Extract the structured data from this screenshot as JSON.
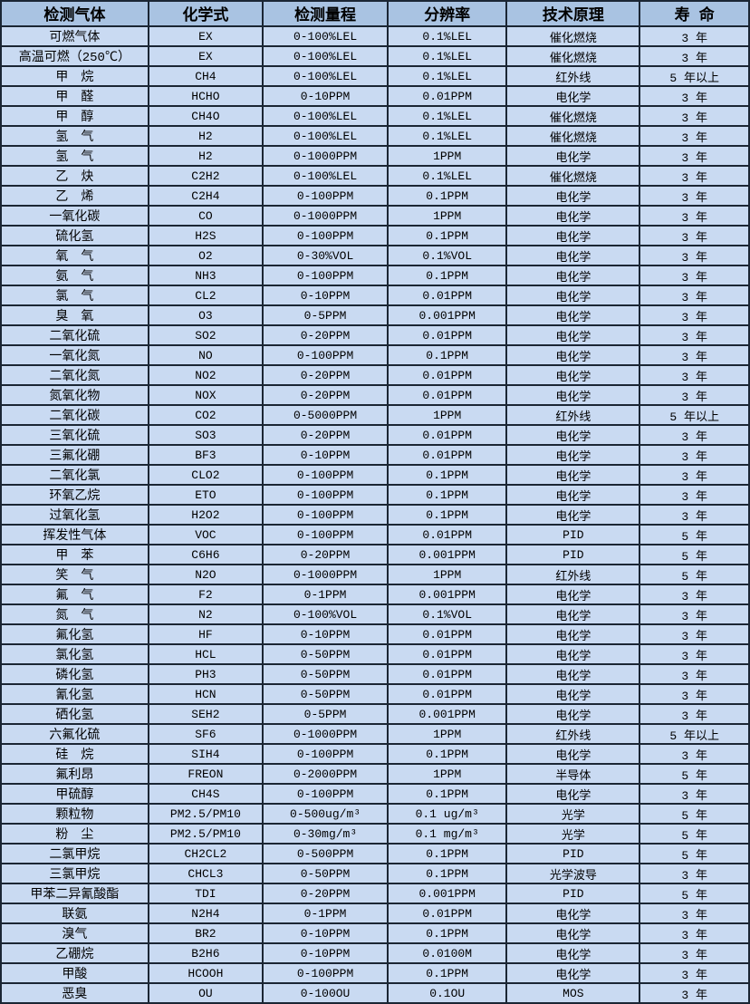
{
  "colors": {
    "header_bg": "#a9c3e2",
    "row_bg": "#c9daf2",
    "border": "#1b2634",
    "text": "#000000"
  },
  "table": {
    "headers": [
      "检测气体",
      "化学式",
      "检测量程",
      "分辨率",
      "技术原理",
      "寿  命"
    ],
    "column_keys": [
      "gas",
      "formula",
      "range",
      "resolution",
      "principle",
      "lifespan"
    ],
    "rows": [
      [
        "可燃气体",
        "EX",
        "0-100%LEL",
        "0.1%LEL",
        "催化燃烧",
        "3 年"
      ],
      [
        "高温可燃（250℃）",
        "EX",
        "0-100%LEL",
        "0.1%LEL",
        "催化燃烧",
        "3 年"
      ],
      [
        "甲　烷",
        "CH4",
        "0-100%LEL",
        "0.1%LEL",
        "红外线",
        "5 年以上"
      ],
      [
        "甲　醛",
        "HCHO",
        "0-10PPM",
        "0.01PPM",
        "电化学",
        "3 年"
      ],
      [
        "甲　醇",
        "CH4O",
        "0-100%LEL",
        "0.1%LEL",
        "催化燃烧",
        "3 年"
      ],
      [
        "氢　气",
        "H2",
        "0-100%LEL",
        "0.1%LEL",
        "催化燃烧",
        "3 年"
      ],
      [
        "氢　气",
        "H2",
        "0-1000PPM",
        "1PPM",
        "电化学",
        "3 年"
      ],
      [
        "乙　炔",
        "C2H2",
        "0-100%LEL",
        "0.1%LEL",
        "催化燃烧",
        "3 年"
      ],
      [
        "乙　烯",
        "C2H4",
        "0-100PPM",
        "0.1PPM",
        "电化学",
        "3 年"
      ],
      [
        "一氧化碳",
        "CO",
        "0-1000PPM",
        "1PPM",
        "电化学",
        "3 年"
      ],
      [
        "硫化氢",
        "H2S",
        "0-100PPM",
        "0.1PPM",
        "电化学",
        "3 年"
      ],
      [
        "氧　气",
        "O2",
        "0-30%VOL",
        "0.1%VOL",
        "电化学",
        "3 年"
      ],
      [
        "氨　气",
        "NH3",
        "0-100PPM",
        "0.1PPM",
        "电化学",
        "3 年"
      ],
      [
        "氯　气",
        "CL2",
        "0-10PPM",
        "0.01PPM",
        "电化学",
        "3 年"
      ],
      [
        "臭　氧",
        "O3",
        "0-5PPM",
        "0.001PPM",
        "电化学",
        "3 年"
      ],
      [
        "二氧化硫",
        "SO2",
        "0-20PPM",
        "0.01PPM",
        "电化学",
        "3 年"
      ],
      [
        "一氧化氮",
        "NO",
        "0-100PPM",
        "0.1PPM",
        "电化学",
        "3 年"
      ],
      [
        "二氧化氮",
        "NO2",
        "0-20PPM",
        "0.01PPM",
        "电化学",
        "3 年"
      ],
      [
        "氮氧化物",
        "NOX",
        "0-20PPM",
        "0.01PPM",
        "电化学",
        "3 年"
      ],
      [
        "二氧化碳",
        "CO2",
        "0-5000PPM",
        "1PPM",
        "红外线",
        "5 年以上"
      ],
      [
        "三氧化硫",
        "SO3",
        "0-20PPM",
        "0.01PPM",
        "电化学",
        "3 年"
      ],
      [
        "三氟化硼",
        "BF3",
        "0-10PPM",
        "0.01PPM",
        "电化学",
        "3 年"
      ],
      [
        "二氧化氯",
        "CLO2",
        "0-100PPM",
        "0.1PPM",
        "电化学",
        "3 年"
      ],
      [
        "环氧乙烷",
        "ETO",
        "0-100PPM",
        "0.1PPM",
        "电化学",
        "3 年"
      ],
      [
        "过氧化氢",
        "H2O2",
        "0-100PPM",
        "0.1PPM",
        "电化学",
        "3 年"
      ],
      [
        "挥发性气体",
        "VOC",
        "0-100PPM",
        "0.01PPM",
        "PID",
        "5 年"
      ],
      [
        "甲　苯",
        "C6H6",
        "0-20PPM",
        "0.001PPM",
        "PID",
        "5 年"
      ],
      [
        "笑　气",
        "N2O",
        "0-1000PPM",
        "1PPM",
        "红外线",
        "5 年"
      ],
      [
        "氟　气",
        "F2",
        "0-1PPM",
        "0.001PPM",
        "电化学",
        "3 年"
      ],
      [
        "氮　气",
        "N2",
        "0-100%VOL",
        "0.1%VOL",
        "电化学",
        "3 年"
      ],
      [
        "氟化氢",
        "HF",
        "0-10PPM",
        "0.01PPM",
        "电化学",
        "3 年"
      ],
      [
        "氯化氢",
        "HCL",
        "0-50PPM",
        "0.01PPM",
        "电化学",
        "3 年"
      ],
      [
        "磷化氢",
        "PH3",
        "0-50PPM",
        "0.01PPM",
        "电化学",
        "3 年"
      ],
      [
        "氰化氢",
        "HCN",
        "0-50PPM",
        "0.01PPM",
        "电化学",
        "3 年"
      ],
      [
        "硒化氢",
        "SEH2",
        "0-5PPM",
        "0.001PPM",
        "电化学",
        "3 年"
      ],
      [
        "六氟化硫",
        "SF6",
        "0-1000PPM",
        "1PPM",
        "红外线",
        "5 年以上"
      ],
      [
        "硅　烷",
        "SIH4",
        "0-100PPM",
        "0.1PPM",
        "电化学",
        "3 年"
      ],
      [
        "氟利昂",
        "FREON",
        "0-2000PPM",
        "1PPM",
        "半导体",
        "5 年"
      ],
      [
        "甲硫醇",
        "CH4S",
        "0-100PPM",
        "0.1PPM",
        "电化学",
        "3 年"
      ],
      [
        "颗粒物",
        "PM2.5/PM10",
        "0-500ug/m³",
        "0.1 ug/m³",
        "光学",
        "5 年"
      ],
      [
        "粉　尘",
        "PM2.5/PM10",
        "0-30mg/m³",
        "0.1 mg/m³",
        "光学",
        "5 年"
      ],
      [
        "二氯甲烷",
        "CH2CL2",
        "0-500PPM",
        "0.1PPM",
        "PID",
        "5 年"
      ],
      [
        "三氯甲烷",
        "CHCL3",
        "0-50PPM",
        "0.1PPM",
        "光学波导",
        "3 年"
      ],
      [
        "甲苯二异氰酸酯",
        "TDI",
        "0-20PPM",
        "0.001PPM",
        "PID",
        "5 年"
      ],
      [
        "联氨",
        "N2H4",
        "0-1PPM",
        "0.01PPM",
        "电化学",
        "3 年"
      ],
      [
        "溴气",
        "BR2",
        "0-10PPM",
        "0.1PPM",
        "电化学",
        "3 年"
      ],
      [
        "乙硼烷",
        "B2H6",
        "0-10PPM",
        "0.0100M",
        "电化学",
        "3 年"
      ],
      [
        "甲酸",
        "HCOOH",
        "0-100PPM",
        "0.1PPM",
        "电化学",
        "3 年"
      ],
      [
        "恶臭",
        "OU",
        "0-100OU",
        "0.1OU",
        "MOS",
        "3 年"
      ]
    ]
  }
}
